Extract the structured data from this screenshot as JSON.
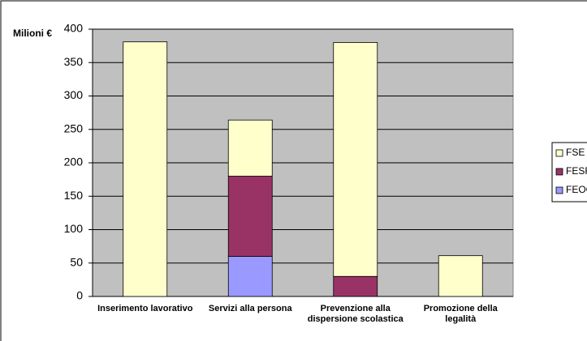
{
  "chart_data": {
    "type": "stacked_bar",
    "y_label": "Milioni €",
    "categories": [
      "Inserimento lavorativo",
      "Servizi alla persona",
      "Prevenzione alla dispersione scolastica",
      "Promozione della legalità"
    ],
    "series": [
      {
        "name": "FEOGA",
        "color": "#9999ff",
        "values": [
          0,
          60,
          0,
          0
        ]
      },
      {
        "name": "FESR",
        "color": "#993366",
        "values": [
          0,
          120,
          30,
          0
        ]
      },
      {
        "name": "FSE",
        "color": "#ffffcc",
        "values": [
          381,
          84,
          350,
          61
        ]
      }
    ],
    "ylim": [
      0,
      400
    ],
    "yticks": [
      0,
      50,
      100,
      150,
      200,
      250,
      300,
      350,
      400
    ],
    "grid": true,
    "legend": "right"
  }
}
